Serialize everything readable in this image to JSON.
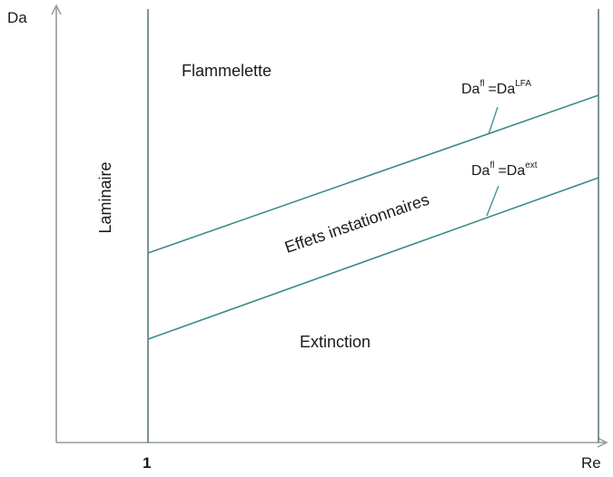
{
  "axes": {
    "y_label": "Da",
    "x_label": "Re",
    "x_tick": "1"
  },
  "regions": {
    "laminar": "Laminaire",
    "flamelet": "Flammelette",
    "unsteady": "Effets instationnaires",
    "extinction": "Extinction"
  },
  "boundaries": {
    "upper": {
      "base": "Da",
      "base_sup": "fl",
      "rhs": "=Da",
      "rhs_sup": "LFA"
    },
    "lower": {
      "base": "Da",
      "base_sup": "fl",
      "rhs": "=Da",
      "rhs_sup": "ext"
    }
  },
  "colors": {
    "axis": "#9a9a9a",
    "upper_line": "#3e8a8c",
    "lower_line": "#3e8a8c",
    "text": "#1a1a1a"
  }
}
